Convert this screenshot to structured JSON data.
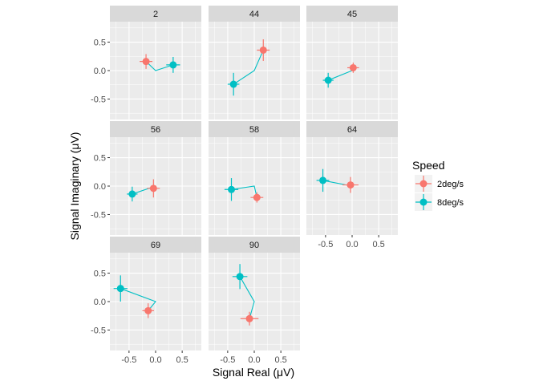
{
  "chart_data": {
    "type": "scatter",
    "xlabel": "Signal Real (μV)",
    "ylabel": "Signal Imaginary (μV)",
    "xlim": [
      -0.86,
      0.86
    ],
    "ylim": [
      -0.86,
      0.86
    ],
    "x_ticks": [
      -0.5,
      0.0,
      0.5
    ],
    "x_tick_labels": [
      "-0.5",
      "0.0",
      "0.5"
    ],
    "y_ticks": [
      -0.5,
      0.0,
      0.5
    ],
    "y_tick_labels": [
      "-0.5",
      "0.0",
      "0.5"
    ],
    "grid": true,
    "legend": {
      "title": "Speed",
      "position": "right",
      "entries": [
        {
          "name": "2deg/s",
          "color": "#F8766D"
        },
        {
          "name": "8deg/s",
          "color": "#00BFC4"
        }
      ]
    },
    "facets": [
      {
        "label": "2",
        "series": [
          {
            "name": "2deg/s",
            "x": -0.18,
            "y": 0.16,
            "x_err": 0.12,
            "y_err": 0.13
          },
          {
            "name": "8deg/s",
            "x": 0.33,
            "y": 0.1,
            "x_err": 0.13,
            "y_err": 0.14
          }
        ]
      },
      {
        "label": "44",
        "series": [
          {
            "name": "2deg/s",
            "x": 0.17,
            "y": 0.36,
            "x_err": 0.12,
            "y_err": 0.19
          },
          {
            "name": "8deg/s",
            "x": -0.39,
            "y": -0.24,
            "x_err": 0.11,
            "y_err": 0.2
          }
        ]
      },
      {
        "label": "45",
        "series": [
          {
            "name": "2deg/s",
            "x": 0.02,
            "y": 0.05,
            "x_err": 0.11,
            "y_err": 0.09
          },
          {
            "name": "8deg/s",
            "x": -0.45,
            "y": -0.17,
            "x_err": 0.1,
            "y_err": 0.13
          }
        ]
      },
      {
        "label": "56",
        "series": [
          {
            "name": "2deg/s",
            "x": -0.04,
            "y": -0.04,
            "x_err": 0.12,
            "y_err": 0.16
          },
          {
            "name": "8deg/s",
            "x": -0.44,
            "y": -0.14,
            "x_err": 0.1,
            "y_err": 0.13
          }
        ]
      },
      {
        "label": "58",
        "series": [
          {
            "name": "2deg/s",
            "x": 0.05,
            "y": -0.2,
            "x_err": 0.12,
            "y_err": 0.09
          },
          {
            "name": "8deg/s",
            "x": -0.43,
            "y": -0.06,
            "x_err": 0.13,
            "y_err": 0.2
          }
        ]
      },
      {
        "label": "64",
        "series": [
          {
            "name": "2deg/s",
            "x": -0.03,
            "y": 0.02,
            "x_err": 0.15,
            "y_err": 0.14
          },
          {
            "name": "8deg/s",
            "x": -0.55,
            "y": 0.1,
            "x_err": 0.12,
            "y_err": 0.2
          }
        ]
      },
      {
        "label": "69",
        "series": [
          {
            "name": "2deg/s",
            "x": -0.14,
            "y": -0.16,
            "x_err": 0.11,
            "y_err": 0.13
          },
          {
            "name": "8deg/s",
            "x": -0.66,
            "y": 0.23,
            "x_err": 0.13,
            "y_err": 0.23
          }
        ]
      },
      {
        "label": "90",
        "series": [
          {
            "name": "2deg/s",
            "x": -0.09,
            "y": -0.3,
            "x_err": 0.17,
            "y_err": 0.12
          },
          {
            "name": "8deg/s",
            "x": -0.27,
            "y": 0.44,
            "x_err": 0.14,
            "y_err": 0.22
          }
        ]
      }
    ]
  }
}
